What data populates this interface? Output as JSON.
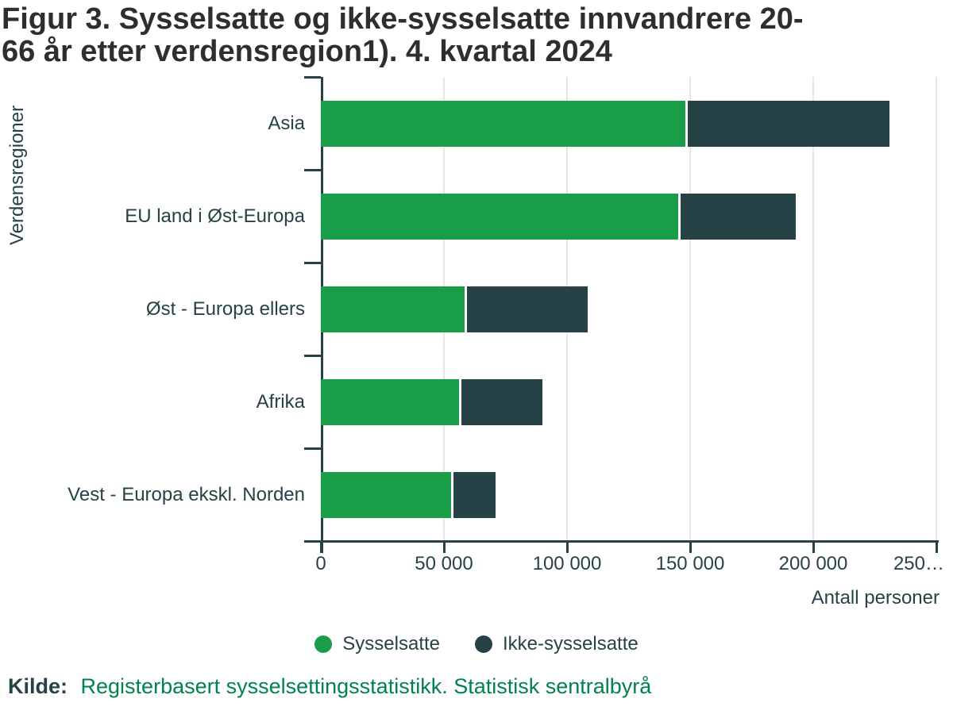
{
  "title": {
    "line1": "Figur 3. Sysselsatte og ikke-sysselsatte innvandrere 20-",
    "line2": "66 år etter verdensregion1). 4. kvartal 2024",
    "full": "Figur 3. Sysselsatte og ikke-sysselsatte innvandrere 20-66 år etter verdensregion1). 4. kvartal 2024"
  },
  "chart_data": {
    "type": "bar",
    "orientation": "horizontal",
    "stacked": true,
    "categories": [
      "Asia",
      "EU land i Øst-Europa",
      "Øst - Europa ellers",
      "Afrika",
      "Vest - Europa ekskl. Norden"
    ],
    "series": [
      {
        "name": "Sysselsatte",
        "color": "#1a9d49",
        "values": [
          148000,
          145000,
          58500,
          56000,
          53000
        ]
      },
      {
        "name": "Ikke-sysselsatte",
        "color": "#274247",
        "values": [
          83000,
          48000,
          50000,
          34000,
          18000
        ]
      }
    ],
    "totals": [
      231000,
      193000,
      108500,
      90000,
      71000
    ],
    "xlabel": "Antall personer",
    "ylabel": "Verdensregioner",
    "xlim": [
      0,
      250000
    ],
    "xtick_values": [
      0,
      50000,
      100000,
      150000,
      200000,
      250000
    ],
    "xtick_labels": [
      "0",
      "50 000",
      "100 000",
      "150 000",
      "200 000",
      "250…"
    ],
    "grid": true,
    "legend_position": "bottom"
  },
  "colors": {
    "employed_green": "#1a9d49",
    "not_employed_dark": "#274247",
    "axis": "#274247",
    "gridline": "#e6e6e6",
    "title_text": "#2e2e2e",
    "source_link_green": "#00824d"
  },
  "source": {
    "label": "Kilde:",
    "text": "Registerbasert sysselsettingsstatistikk. Statistisk sentralbyrå"
  }
}
